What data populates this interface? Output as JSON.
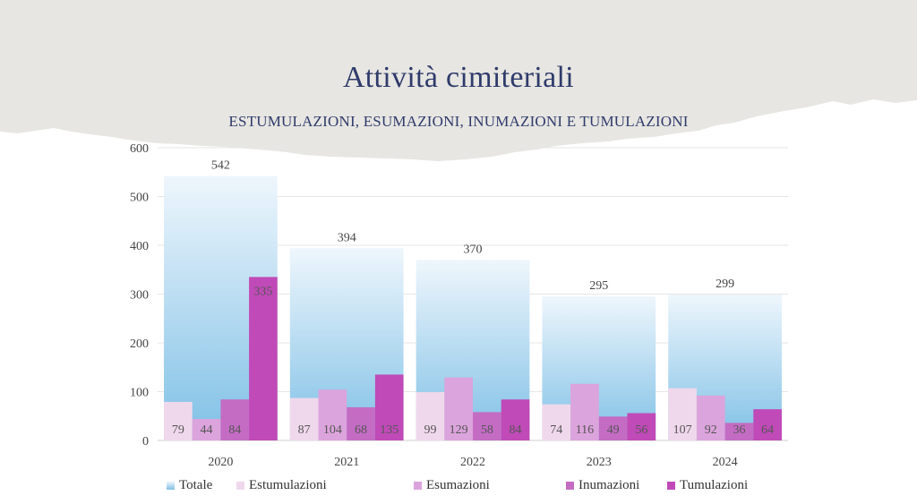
{
  "title": "Attività cimiteriali",
  "subtitle": "ESTUMULAZIONI, ESUMAZIONI, INUMAZIONI E TUMULAZIONI",
  "chart_data": {
    "type": "bar",
    "categories": [
      "2020",
      "2021",
      "2022",
      "2023",
      "2024"
    ],
    "ylim": [
      0,
      600
    ],
    "yticks": [
      0,
      100,
      200,
      300,
      400,
      500,
      600
    ],
    "grid": true,
    "legend_position": "bottom",
    "series": [
      {
        "name": "Totale",
        "values": [
          542,
          394,
          370,
          295,
          299
        ],
        "color": "#7fc0e6"
      },
      {
        "name": "Estumulazioni",
        "values": [
          79,
          87,
          99,
          74,
          107
        ],
        "color": "#f0d8ec"
      },
      {
        "name": "Esumazioni",
        "values": [
          44,
          104,
          129,
          116,
          92
        ],
        "color": "#dca4dc"
      },
      {
        "name": "Inumazioni",
        "values": [
          84,
          68,
          58,
          49,
          36
        ],
        "color": "#c46cc4"
      },
      {
        "name": "Tumulazioni",
        "values": [
          335,
          135,
          84,
          56,
          64
        ],
        "color": "#c04ab8"
      }
    ]
  }
}
